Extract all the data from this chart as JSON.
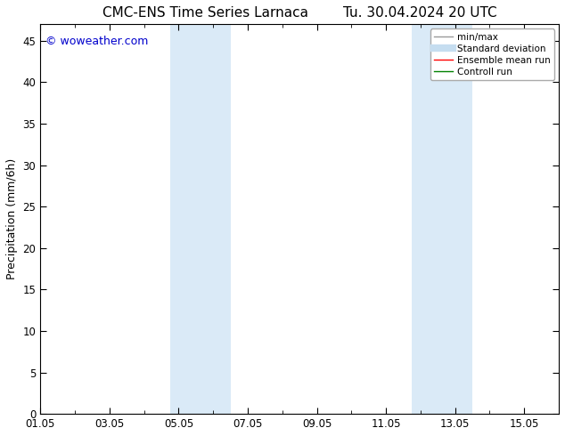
{
  "title_left": "CMC-ENS Time Series Larnaca",
  "title_right": "Tu. 30.04.2024 20 UTC",
  "ylabel": "Precipitation (mm/6h)",
  "ylim": [
    0,
    47
  ],
  "yticks": [
    0,
    5,
    10,
    15,
    20,
    25,
    30,
    35,
    40,
    45
  ],
  "x_tick_labels": [
    "01.05",
    "03.05",
    "05.05",
    "07.05",
    "09.05",
    "11.05",
    "13.05",
    "15.05"
  ],
  "x_tick_positions_days": [
    0,
    2,
    4,
    6,
    8,
    10,
    12,
    14
  ],
  "xlim": [
    0,
    15
  ],
  "shaded_bands": [
    {
      "x_start_day": 3.75,
      "x_end_day": 5.5,
      "color": "#daeaf7"
    },
    {
      "x_start_day": 10.75,
      "x_end_day": 12.5,
      "color": "#daeaf7"
    }
  ],
  "watermark_text": "© woweather.com",
  "watermark_color": "#0000cc",
  "watermark_fontsize": 9,
  "legend_items": [
    {
      "label": "min/max",
      "color": "#999999",
      "lw": 1.0,
      "ls": "-"
    },
    {
      "label": "Standard deviation",
      "color": "#c5ddf0",
      "lw": 6,
      "ls": "-"
    },
    {
      "label": "Ensemble mean run",
      "color": "#ff0000",
      "lw": 1.0,
      "ls": "-"
    },
    {
      "label": "Controll run",
      "color": "#008000",
      "lw": 1.0,
      "ls": "-"
    }
  ],
  "background_color": "#ffffff",
  "plot_bg_color": "#ffffff",
  "tick_color": "#000000",
  "title_fontsize": 11,
  "axis_label_fontsize": 9,
  "tick_fontsize": 8.5,
  "legend_fontsize": 7.5
}
